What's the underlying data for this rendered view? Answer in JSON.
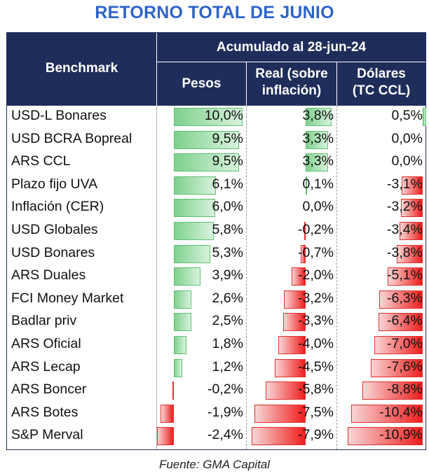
{
  "title": "RETORNO TOTAL DE JUNIO",
  "header": {
    "benchmark": "Benchmark",
    "group": "Acumulado al 28-jun-24",
    "columns": [
      {
        "line1": "Pesos",
        "line2": ""
      },
      {
        "line1": "Real (sobre",
        "line2": "inflación)"
      },
      {
        "line1": "Dólares",
        "line2": "(TC CCL)"
      }
    ]
  },
  "source": "Fuente: GMA Capital",
  "colors": {
    "header_bg": "#1f2d5a",
    "title": "#2e64c8",
    "positive_bar": "#6cc97e",
    "negative_bar": "#f01d1d"
  },
  "chart_data": {
    "type": "table",
    "title": "RETORNO TOTAL DE JUNIO",
    "columns": [
      "Pesos",
      "Real (sobre inflación)",
      "Dólares (TC CCL)"
    ],
    "rows": [
      {
        "name": "USD-L Bonares",
        "values": [
          10.0,
          3.8,
          0.5
        ],
        "labels": [
          "10,0%",
          "3,8%",
          "0,5%"
        ]
      },
      {
        "name": "USD BCRA Bopreal",
        "values": [
          9.5,
          3.3,
          0.0
        ],
        "labels": [
          "9,5%",
          "3,3%",
          "0,0%"
        ]
      },
      {
        "name": "ARS CCL",
        "values": [
          9.5,
          3.3,
          0.0
        ],
        "labels": [
          "9,5%",
          "3,3%",
          "0,0%"
        ]
      },
      {
        "name": "Plazo fijo UVA",
        "values": [
          6.1,
          0.1,
          -3.1
        ],
        "labels": [
          "6,1%",
          "0,1%",
          "-3,1%"
        ]
      },
      {
        "name": "Inflación (CER)",
        "values": [
          6.0,
          0.0,
          -3.2
        ],
        "labels": [
          "6,0%",
          "0,0%",
          "-3,2%"
        ]
      },
      {
        "name": "USD Globales",
        "values": [
          5.8,
          -0.2,
          -3.4
        ],
        "labels": [
          "5,8%",
          "-0,2%",
          "-3,4%"
        ]
      },
      {
        "name": "USD Bonares",
        "values": [
          5.3,
          -0.7,
          -3.8
        ],
        "labels": [
          "5,3%",
          "-0,7%",
          "-3,8%"
        ]
      },
      {
        "name": "ARS Duales",
        "values": [
          3.9,
          -2.0,
          -5.1
        ],
        "labels": [
          "3,9%",
          "-2,0%",
          "-5,1%"
        ]
      },
      {
        "name": "FCI Money Market",
        "values": [
          2.6,
          -3.2,
          -6.3
        ],
        "labels": [
          "2,6%",
          "-3,2%",
          "-6,3%"
        ]
      },
      {
        "name": "Badlar priv",
        "values": [
          2.5,
          -3.3,
          -6.4
        ],
        "labels": [
          "2,5%",
          "-3,3%",
          "-6,4%"
        ]
      },
      {
        "name": "ARS Oficial",
        "values": [
          1.8,
          -4.0,
          -7.0
        ],
        "labels": [
          "1,8%",
          "-4,0%",
          "-7,0%"
        ]
      },
      {
        "name": "ARS Lecap",
        "values": [
          1.2,
          -4.5,
          -7.6
        ],
        "labels": [
          "1,2%",
          "-4,5%",
          "-7,6%"
        ]
      },
      {
        "name": "ARS Boncer",
        "values": [
          -0.2,
          -5.8,
          -8.8
        ],
        "labels": [
          "-0,2%",
          "-5,8%",
          "-8,8%"
        ]
      },
      {
        "name": "ARS Botes",
        "values": [
          -1.9,
          -7.5,
          -10.4
        ],
        "labels": [
          "-1,9%",
          "-7,5%",
          "-10,4%"
        ]
      },
      {
        "name": "S&P Merval",
        "values": [
          -2.4,
          -7.9,
          -10.9
        ],
        "labels": [
          "-2,4%",
          "-7,9%",
          "-10,9%"
        ]
      }
    ]
  }
}
